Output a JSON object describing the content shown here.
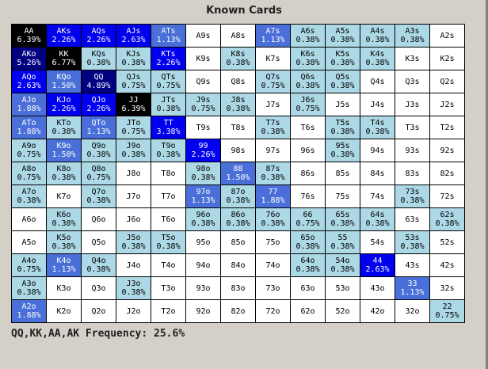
{
  "title": "Known Cards",
  "frequency_text": "QQ,KK,AA,AK Frequency: 25.6%",
  "colors": {
    "b0": "#ffffff",
    "b1": "#add8e6",
    "b2": "#4a6fd8",
    "b3": "#0000ee",
    "b4": "#000080",
    "b5": "#000000"
  },
  "rows": [
    [
      [
        "AA",
        "6.39%",
        "b5"
      ],
      [
        "AKs",
        "2.26%",
        "b3"
      ],
      [
        "AQs",
        "2.26%",
        "b3"
      ],
      [
        "AJs",
        "2.63%",
        "b3"
      ],
      [
        "ATs",
        "1.13%",
        "b2"
      ],
      [
        "A9s",
        "",
        "b0"
      ],
      [
        "A8s",
        "",
        "b0"
      ],
      [
        "A7s",
        "1.13%",
        "b2"
      ],
      [
        "A6s",
        "0.38%",
        "b1"
      ],
      [
        "A5s",
        "0.38%",
        "b1"
      ],
      [
        "A4s",
        "0.38%",
        "b1"
      ],
      [
        "A3s",
        "0.38%",
        "b1"
      ],
      [
        "A2s",
        "",
        "b0"
      ]
    ],
    [
      [
        "AKo",
        "5.26%",
        "b4"
      ],
      [
        "KK",
        "6.77%",
        "b5"
      ],
      [
        "KQs",
        "0.38%",
        "b1"
      ],
      [
        "KJs",
        "0.38%",
        "b1"
      ],
      [
        "KTs",
        "2.26%",
        "b3"
      ],
      [
        "K9s",
        "",
        "b0"
      ],
      [
        "K8s",
        "0.38%",
        "b1"
      ],
      [
        "K7s",
        "",
        "b0"
      ],
      [
        "K6s",
        "0.38%",
        "b1"
      ],
      [
        "K5s",
        "0.38%",
        "b1"
      ],
      [
        "K4s",
        "0.38%",
        "b1"
      ],
      [
        "K3s",
        "",
        "b0"
      ],
      [
        "K2s",
        "",
        "b0"
      ]
    ],
    [
      [
        "AQo",
        "2.63%",
        "b3"
      ],
      [
        "KQo",
        "1.50%",
        "b2"
      ],
      [
        "QQ",
        "4.89%",
        "b4"
      ],
      [
        "QJs",
        "0.75%",
        "b1"
      ],
      [
        "QTs",
        "0.75%",
        "b1"
      ],
      [
        "Q9s",
        "",
        "b0"
      ],
      [
        "Q8s",
        "",
        "b0"
      ],
      [
        "Q7s",
        "0.75%",
        "b1"
      ],
      [
        "Q6s",
        "0.38%",
        "b1"
      ],
      [
        "Q5s",
        "0.38%",
        "b1"
      ],
      [
        "Q4s",
        "",
        "b0"
      ],
      [
        "Q3s",
        "",
        "b0"
      ],
      [
        "Q2s",
        "",
        "b0"
      ]
    ],
    [
      [
        "AJo",
        "1.88%",
        "b2"
      ],
      [
        "KJo",
        "2.26%",
        "b3"
      ],
      [
        "QJo",
        "2.26%",
        "b3"
      ],
      [
        "JJ",
        "6.39%",
        "b5"
      ],
      [
        "JTs",
        "0.38%",
        "b1"
      ],
      [
        "J9s",
        "0.75%",
        "b1"
      ],
      [
        "J8s",
        "0.38%",
        "b1"
      ],
      [
        "J7s",
        "",
        "b0"
      ],
      [
        "J6s",
        "0.75%",
        "b1"
      ],
      [
        "J5s",
        "",
        "b0"
      ],
      [
        "J4s",
        "",
        "b0"
      ],
      [
        "J3s",
        "",
        "b0"
      ],
      [
        "J2s",
        "",
        "b0"
      ]
    ],
    [
      [
        "ATo",
        "1.88%",
        "b2"
      ],
      [
        "KTo",
        "0.38%",
        "b1"
      ],
      [
        "QTo",
        "1.13%",
        "b2"
      ],
      [
        "JTo",
        "0.75%",
        "b1"
      ],
      [
        "TT",
        "3.38%",
        "b3"
      ],
      [
        "T9s",
        "",
        "b0"
      ],
      [
        "T8s",
        "",
        "b0"
      ],
      [
        "T7s",
        "0.38%",
        "b1"
      ],
      [
        "T6s",
        "",
        "b0"
      ],
      [
        "T5s",
        "0.38%",
        "b1"
      ],
      [
        "T4s",
        "0.38%",
        "b1"
      ],
      [
        "T3s",
        "",
        "b0"
      ],
      [
        "T2s",
        "",
        "b0"
      ]
    ],
    [
      [
        "A9o",
        "0.75%",
        "b1"
      ],
      [
        "K9o",
        "1.50%",
        "b2"
      ],
      [
        "Q9o",
        "0.38%",
        "b1"
      ],
      [
        "J9o",
        "0.38%",
        "b1"
      ],
      [
        "T9o",
        "0.38%",
        "b1"
      ],
      [
        "99",
        "2.26%",
        "b3"
      ],
      [
        "98s",
        "",
        "b0"
      ],
      [
        "97s",
        "",
        "b0"
      ],
      [
        "96s",
        "",
        "b0"
      ],
      [
        "95s",
        "0.38%",
        "b1"
      ],
      [
        "94s",
        "",
        "b0"
      ],
      [
        "93s",
        "",
        "b0"
      ],
      [
        "92s",
        "",
        "b0"
      ]
    ],
    [
      [
        "A8o",
        "0.75%",
        "b1"
      ],
      [
        "K8o",
        "0.38%",
        "b1"
      ],
      [
        "Q8o",
        "0.75%",
        "b1"
      ],
      [
        "J8o",
        "",
        "b0"
      ],
      [
        "T8o",
        "",
        "b0"
      ],
      [
        "98o",
        "0.38%",
        "b1"
      ],
      [
        "88",
        "1.50%",
        "b2"
      ],
      [
        "87s",
        "0.38%",
        "b1"
      ],
      [
        "86s",
        "",
        "b0"
      ],
      [
        "85s",
        "",
        "b0"
      ],
      [
        "84s",
        "",
        "b0"
      ],
      [
        "83s",
        "",
        "b0"
      ],
      [
        "82s",
        "",
        "b0"
      ]
    ],
    [
      [
        "A7o",
        "0.38%",
        "b1"
      ],
      [
        "K7o",
        "",
        "b0"
      ],
      [
        "Q7o",
        "0.38%",
        "b1"
      ],
      [
        "J7o",
        "",
        "b0"
      ],
      [
        "T7o",
        "",
        "b0"
      ],
      [
        "97o",
        "1.13%",
        "b2"
      ],
      [
        "87o",
        "0.38%",
        "b1"
      ],
      [
        "77",
        "1.88%",
        "b2"
      ],
      [
        "76s",
        "",
        "b0"
      ],
      [
        "75s",
        "",
        "b0"
      ],
      [
        "74s",
        "",
        "b0"
      ],
      [
        "73s",
        "0.38%",
        "b1"
      ],
      [
        "72s",
        "",
        "b0"
      ]
    ],
    [
      [
        "A6o",
        "",
        "b0"
      ],
      [
        "K6o",
        "0.38%",
        "b1"
      ],
      [
        "Q6o",
        "",
        "b0"
      ],
      [
        "J6o",
        "",
        "b0"
      ],
      [
        "T6o",
        "",
        "b0"
      ],
      [
        "96o",
        "0.38%",
        "b1"
      ],
      [
        "86o",
        "0.38%",
        "b1"
      ],
      [
        "76o",
        "0.38%",
        "b1"
      ],
      [
        "66",
        "0.75%",
        "b1"
      ],
      [
        "65s",
        "0.38%",
        "b1"
      ],
      [
        "64s",
        "0.38%",
        "b1"
      ],
      [
        "63s",
        "",
        "b0"
      ],
      [
        "62s",
        "0.38%",
        "b1"
      ]
    ],
    [
      [
        "A5o",
        "",
        "b0"
      ],
      [
        "K5o",
        "0.38%",
        "b1"
      ],
      [
        "Q5o",
        "",
        "b0"
      ],
      [
        "J5o",
        "0.38%",
        "b1"
      ],
      [
        "T5o",
        "0.38%",
        "b1"
      ],
      [
        "95o",
        "",
        "b0"
      ],
      [
        "85o",
        "",
        "b0"
      ],
      [
        "75o",
        "",
        "b0"
      ],
      [
        "65o",
        "0.38%",
        "b1"
      ],
      [
        "55",
        "0.38%",
        "b1"
      ],
      [
        "54s",
        "",
        "b0"
      ],
      [
        "53s",
        "0.38%",
        "b1"
      ],
      [
        "52s",
        "",
        "b0"
      ]
    ],
    [
      [
        "A4o",
        "0.75%",
        "b1"
      ],
      [
        "K4o",
        "1.13%",
        "b2"
      ],
      [
        "Q4o",
        "0.38%",
        "b1"
      ],
      [
        "J4o",
        "",
        "b0"
      ],
      [
        "T4o",
        "",
        "b0"
      ],
      [
        "94o",
        "",
        "b0"
      ],
      [
        "84o",
        "",
        "b0"
      ],
      [
        "74o",
        "",
        "b0"
      ],
      [
        "64o",
        "0.38%",
        "b1"
      ],
      [
        "54o",
        "0.38%",
        "b1"
      ],
      [
        "44",
        "2.63%",
        "b3"
      ],
      [
        "43s",
        "",
        "b0"
      ],
      [
        "42s",
        "",
        "b0"
      ]
    ],
    [
      [
        "A3o",
        "0.38%",
        "b1"
      ],
      [
        "K3o",
        "",
        "b0"
      ],
      [
        "Q3o",
        "",
        "b0"
      ],
      [
        "J3o",
        "0.38%",
        "b1"
      ],
      [
        "T3o",
        "",
        "b0"
      ],
      [
        "93o",
        "",
        "b0"
      ],
      [
        "83o",
        "",
        "b0"
      ],
      [
        "73o",
        "",
        "b0"
      ],
      [
        "63o",
        "",
        "b0"
      ],
      [
        "53o",
        "",
        "b0"
      ],
      [
        "43o",
        "",
        "b0"
      ],
      [
        "33",
        "1.13%",
        "b2"
      ],
      [
        "32s",
        "",
        "b0"
      ]
    ],
    [
      [
        "A2o",
        "1.88%",
        "b2"
      ],
      [
        "K2o",
        "",
        "b0"
      ],
      [
        "Q2o",
        "",
        "b0"
      ],
      [
        "J2o",
        "",
        "b0"
      ],
      [
        "T2o",
        "",
        "b0"
      ],
      [
        "92o",
        "",
        "b0"
      ],
      [
        "82o",
        "",
        "b0"
      ],
      [
        "72o",
        "",
        "b0"
      ],
      [
        "62o",
        "",
        "b0"
      ],
      [
        "52o",
        "",
        "b0"
      ],
      [
        "42o",
        "",
        "b0"
      ],
      [
        "32o",
        "",
        "b0"
      ],
      [
        "22",
        "0.75%",
        "b1"
      ]
    ]
  ]
}
